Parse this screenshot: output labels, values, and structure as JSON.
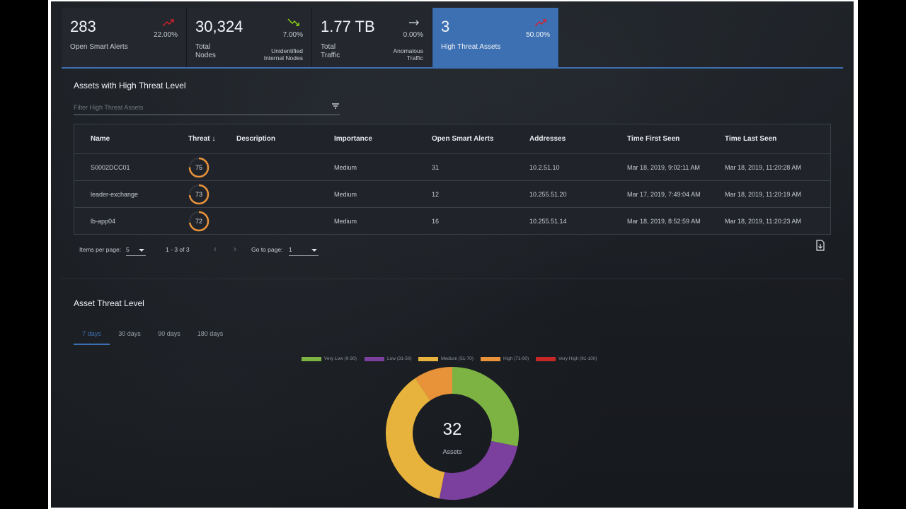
{
  "kpis": [
    {
      "value": "283",
      "label": "Open Smart Alerts",
      "pct": "22.00%",
      "sub": "",
      "trend": "up",
      "trend_color": "#da1e28"
    },
    {
      "value": "30,324",
      "label": "Total\nNodes",
      "pct": "7.00%",
      "sub": "Unidentified\nInternal Nodes",
      "trend": "down",
      "trend_color": "#8cd211"
    },
    {
      "value": "1.77 TB",
      "label": "Total\nTraffic",
      "pct": "0.00%",
      "sub": "Anomalous\nTraffic",
      "trend": "flat",
      "trend_color": "#c7ccd1"
    },
    {
      "value": "3",
      "label": "High Threat Assets",
      "pct": "50.00%",
      "sub": "",
      "trend": "up",
      "trend_color": "#da1e28"
    }
  ],
  "assets_section": {
    "title": "Assets with High Threat Level",
    "filter_placeholder": "Filter High Threat Assets",
    "columns": [
      "Name",
      "Threat",
      "Description",
      "Importance",
      "Open Smart Alerts",
      "Addresses",
      "Time First Seen",
      "Time Last Seen"
    ],
    "rows": [
      {
        "name": "S0002DCC01",
        "threat": 75,
        "description": "",
        "importance": "Medium",
        "alerts": "31",
        "address": "10.2.51.10",
        "first_seen": "Mar 18, 2019, 9:02:11 AM",
        "last_seen": "Mar 18, 2019, 11:20:28 AM"
      },
      {
        "name": "leader-exchange",
        "threat": 73,
        "description": "",
        "importance": "Medium",
        "alerts": "12",
        "address": "10.255.51.20",
        "first_seen": "Mar 17, 2019, 7:49:04 AM",
        "last_seen": "Mar 18, 2019, 11:20:19 AM"
      },
      {
        "name": "lb-app04",
        "threat": 72,
        "description": "",
        "importance": "Medium",
        "alerts": "16",
        "address": "10.255.51.14",
        "first_seen": "Mar 18, 2019, 8:52:59 AM",
        "last_seen": "Mar 18, 2019, 11:20:23 AM"
      }
    ],
    "pager": {
      "items_per_page_label": "Items per page:",
      "items_per_page": "5",
      "range": "1 - 3 of 3",
      "go_to_label": "Go to page:",
      "page": "1"
    }
  },
  "threat_section": {
    "title": "Asset Threat Level",
    "tabs": [
      "7 days",
      "30 days",
      "90 days",
      "180 days"
    ],
    "active_tab": 0,
    "legend": [
      {
        "label": "Very Low (0-30)",
        "color": "#7cb342"
      },
      {
        "label": "Low (31-50)",
        "color": "#7b3f9e"
      },
      {
        "label": "Medium (51-70)",
        "color": "#e8b33c"
      },
      {
        "label": "High (71-90)",
        "color": "#e8923a"
      },
      {
        "label": "Very High (91-100)",
        "color": "#c62828"
      }
    ],
    "total": "32",
    "total_label": "Assets"
  },
  "chart_data": {
    "type": "pie",
    "categories": [
      "Very Low (0-30)",
      "Low (31-50)",
      "Medium (51-70)",
      "High (71-90)",
      "Very High (91-100)"
    ],
    "values": [
      9,
      8,
      12,
      3,
      0
    ],
    "colors": [
      "#7cb342",
      "#7b3f9e",
      "#e8b33c",
      "#e8923a",
      "#c62828"
    ],
    "title": "Asset Threat Level",
    "center_value": "32",
    "center_label": "Assets",
    "legend": "top"
  }
}
